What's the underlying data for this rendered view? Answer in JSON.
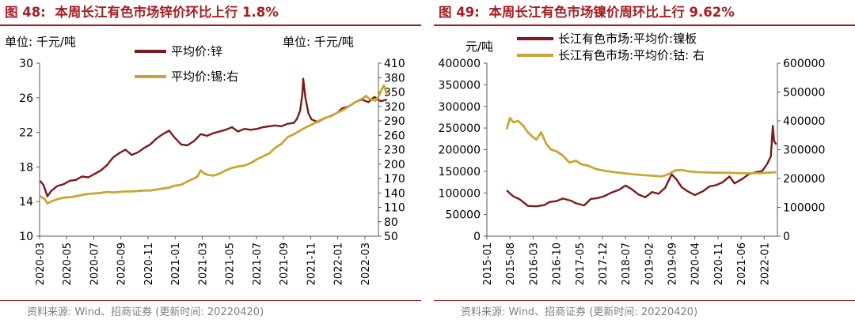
{
  "chart_data": [
    {
      "type": "line",
      "figure_label": "图 48:",
      "title": "本周长江有色市场锌价环比上行 1.8%",
      "left_unit": "单位:  千元/吨",
      "right_unit": "单位:  千元/吨",
      "y_left": {
        "range": [
          10,
          30
        ],
        "ticks": [
          10,
          14,
          18,
          22,
          26,
          30
        ]
      },
      "y_right": {
        "range": [
          50,
          410
        ],
        "ticks": [
          50,
          80,
          110,
          140,
          170,
          200,
          230,
          260,
          290,
          320,
          350,
          380,
          410
        ]
      },
      "x_range": [
        "2020-03",
        "2022-04"
      ],
      "x_ticks": [
        "2020-03",
        "2020-05",
        "2020-07",
        "2020-09",
        "2020-11",
        "2021-01",
        "2021-03",
        "2021-05",
        "2021-07",
        "2021-09",
        "2021-11",
        "2022-01",
        "2022-03"
      ],
      "legend_position": "top-center",
      "series": [
        {
          "name": "平均价:锌",
          "axis": "left",
          "color": "#7b1a1c",
          "points": [
            [
              "2020-03-02",
              16.4
            ],
            [
              "2020-03-10",
              15.9
            ],
            [
              "2020-03-19",
              14.6
            ],
            [
              "2020-03-27",
              15.2
            ],
            [
              "2020-04-10",
              15.8
            ],
            [
              "2020-04-24",
              16.0
            ],
            [
              "2020-05-08",
              16.4
            ],
            [
              "2020-05-22",
              16.5
            ],
            [
              "2020-06-05",
              16.9
            ],
            [
              "2020-06-19",
              16.8
            ],
            [
              "2020-07-03",
              17.2
            ],
            [
              "2020-07-17",
              17.6
            ],
            [
              "2020-07-31",
              18.2
            ],
            [
              "2020-08-14",
              19.1
            ],
            [
              "2020-08-28",
              19.6
            ],
            [
              "2020-09-11",
              20.0
            ],
            [
              "2020-09-25",
              19.4
            ],
            [
              "2020-10-09",
              19.7
            ],
            [
              "2020-10-23",
              20.2
            ],
            [
              "2020-11-06",
              20.6
            ],
            [
              "2020-11-20",
              21.3
            ],
            [
              "2020-12-04",
              21.8
            ],
            [
              "2020-12-18",
              22.2
            ],
            [
              "2020-12-31",
              21.4
            ],
            [
              "2021-01-15",
              20.6
            ],
            [
              "2021-01-29",
              20.5
            ],
            [
              "2021-02-12",
              21.0
            ],
            [
              "2021-02-26",
              21.8
            ],
            [
              "2021-03-12",
              21.6
            ],
            [
              "2021-03-26",
              21.9
            ],
            [
              "2021-04-09",
              22.1
            ],
            [
              "2021-04-23",
              22.3
            ],
            [
              "2021-05-07",
              22.6
            ],
            [
              "2021-05-21",
              22.1
            ],
            [
              "2021-06-04",
              22.4
            ],
            [
              "2021-06-18",
              22.3
            ],
            [
              "2021-07-02",
              22.4
            ],
            [
              "2021-07-16",
              22.6
            ],
            [
              "2021-07-30",
              22.7
            ],
            [
              "2021-08-13",
              22.8
            ],
            [
              "2021-08-27",
              22.7
            ],
            [
              "2021-09-10",
              23.0
            ],
            [
              "2021-09-24",
              23.1
            ],
            [
              "2021-10-01",
              23.6
            ],
            [
              "2021-10-08",
              24.5
            ],
            [
              "2021-10-13",
              26.4
            ],
            [
              "2021-10-15",
              28.2
            ],
            [
              "2021-10-20",
              26.0
            ],
            [
              "2021-10-27",
              24.2
            ],
            [
              "2021-11-03",
              23.5
            ],
            [
              "2021-11-17",
              23.2
            ],
            [
              "2021-12-01",
              23.6
            ],
            [
              "2021-12-15",
              23.9
            ],
            [
              "2021-12-29",
              24.2
            ],
            [
              "2022-01-12",
              24.8
            ],
            [
              "2022-01-26",
              25.0
            ],
            [
              "2022-02-09",
              25.5
            ],
            [
              "2022-02-23",
              25.8
            ],
            [
              "2022-03-09",
              25.5
            ],
            [
              "2022-03-23",
              26.1
            ],
            [
              "2022-04-06",
              25.6
            ],
            [
              "2022-04-20",
              25.8
            ]
          ]
        },
        {
          "name": "平均价:锡:右",
          "axis": "right",
          "color": "#c9a633",
          "points": [
            [
              "2020-03-02",
              133
            ],
            [
              "2020-03-12",
              128
            ],
            [
              "2020-03-19",
              118
            ],
            [
              "2020-03-27",
              122
            ],
            [
              "2020-04-10",
              127
            ],
            [
              "2020-04-24",
              130
            ],
            [
              "2020-05-08",
              131
            ],
            [
              "2020-05-22",
              133
            ],
            [
              "2020-06-05",
              136
            ],
            [
              "2020-06-19",
              138
            ],
            [
              "2020-07-03",
              139
            ],
            [
              "2020-07-17",
              140
            ],
            [
              "2020-07-31",
              142
            ],
            [
              "2020-08-14",
              141
            ],
            [
              "2020-08-28",
              142
            ],
            [
              "2020-09-11",
              143
            ],
            [
              "2020-09-25",
              143
            ],
            [
              "2020-10-09",
              144
            ],
            [
              "2020-10-23",
              145
            ],
            [
              "2020-11-06",
              145
            ],
            [
              "2020-11-20",
              147
            ],
            [
              "2020-12-04",
              149
            ],
            [
              "2020-12-18",
              151
            ],
            [
              "2020-12-31",
              155
            ],
            [
              "2021-01-15",
              157
            ],
            [
              "2021-01-29",
              164
            ],
            [
              "2021-02-12",
              170
            ],
            [
              "2021-02-19",
              174
            ],
            [
              "2021-02-26",
              187
            ],
            [
              "2021-03-05",
              181
            ],
            [
              "2021-03-12",
              178
            ],
            [
              "2021-03-26",
              176
            ],
            [
              "2021-04-09",
              180
            ],
            [
              "2021-04-23",
              187
            ],
            [
              "2021-05-07",
              192
            ],
            [
              "2021-05-21",
              195
            ],
            [
              "2021-06-04",
              197
            ],
            [
              "2021-06-18",
              202
            ],
            [
              "2021-07-02",
              210
            ],
            [
              "2021-07-16",
              216
            ],
            [
              "2021-07-30",
              222
            ],
            [
              "2021-08-13",
              234
            ],
            [
              "2021-08-27",
              242
            ],
            [
              "2021-09-10",
              256
            ],
            [
              "2021-09-24",
              262
            ],
            [
              "2021-10-08",
              270
            ],
            [
              "2021-10-22",
              277
            ],
            [
              "2021-11-05",
              283
            ],
            [
              "2021-11-19",
              290
            ],
            [
              "2021-12-03",
              296
            ],
            [
              "2021-12-17",
              300
            ],
            [
              "2021-12-31",
              307
            ],
            [
              "2022-01-14",
              313
            ],
            [
              "2022-01-28",
              321
            ],
            [
              "2022-02-11",
              330
            ],
            [
              "2022-02-25",
              337
            ],
            [
              "2022-03-04",
              342
            ],
            [
              "2022-03-11",
              336
            ],
            [
              "2022-03-25",
              332
            ],
            [
              "2022-04-01",
              340
            ],
            [
              "2022-04-08",
              355
            ],
            [
              "2022-04-13",
              364
            ],
            [
              "2022-04-20",
              345
            ]
          ]
        }
      ]
    },
    {
      "type": "line",
      "figure_label": "图 49:",
      "title": "本周长江有色市场镍价周环比上行 9.62%",
      "left_unit": "元/吨",
      "right_unit": "",
      "y_left": {
        "range": [
          0,
          400000
        ],
        "ticks": [
          0,
          50000,
          100000,
          150000,
          200000,
          250000,
          300000,
          350000,
          400000
        ]
      },
      "y_right": {
        "range": [
          0,
          600000
        ],
        "ticks": [
          0,
          100000,
          200000,
          300000,
          400000,
          500000,
          600000
        ]
      },
      "x_range": [
        "2015-01",
        "2022-05"
      ],
      "x_ticks": [
        "2015-01",
        "2015-08",
        "2016-03",
        "2016-10",
        "2017-05",
        "2017-12",
        "2018-07",
        "2019-02",
        "2019-09",
        "2020-04",
        "2020-11",
        "2021-06",
        "2022-01"
      ],
      "legend_position": "top-left",
      "series": [
        {
          "name": "长江有色市场:平均价:镍板",
          "axis": "left",
          "color": "#7b1a1c",
          "points": [
            [
              "2015-07-01",
              106000
            ],
            [
              "2015-09-01",
              92000
            ],
            [
              "2015-11-01",
              85000
            ],
            [
              "2016-01-15",
              70000
            ],
            [
              "2016-04-01",
              69000
            ],
            [
              "2016-06-15",
              72000
            ],
            [
              "2016-08-01",
              79000
            ],
            [
              "2016-10-01",
              81000
            ],
            [
              "2016-12-01",
              87000
            ],
            [
              "2017-02-15",
              82000
            ],
            [
              "2017-04-01",
              76000
            ],
            [
              "2017-06-15",
              71000
            ],
            [
              "2017-08-15",
              86000
            ],
            [
              "2017-10-15",
              88000
            ],
            [
              "2017-12-15",
              92000
            ],
            [
              "2018-02-15",
              100000
            ],
            [
              "2018-05-01",
              107000
            ],
            [
              "2018-07-01",
              117000
            ],
            [
              "2018-09-01",
              108000
            ],
            [
              "2018-11-01",
              96000
            ],
            [
              "2019-01-01",
              90000
            ],
            [
              "2019-03-01",
              102000
            ],
            [
              "2019-05-01",
              98000
            ],
            [
              "2019-07-01",
              112000
            ],
            [
              "2019-09-01",
              143000
            ],
            [
              "2019-10-15",
              131000
            ],
            [
              "2019-12-01",
              113000
            ],
            [
              "2020-02-01",
              103000
            ],
            [
              "2020-04-01",
              95000
            ],
            [
              "2020-06-15",
              104000
            ],
            [
              "2020-08-15",
              115000
            ],
            [
              "2020-10-15",
              118000
            ],
            [
              "2020-12-15",
              125000
            ],
            [
              "2021-02-15",
              138000
            ],
            [
              "2021-04-01",
              122000
            ],
            [
              "2021-06-15",
              133000
            ],
            [
              "2021-08-15",
              144000
            ],
            [
              "2021-10-15",
              148000
            ],
            [
              "2021-12-15",
              151000
            ],
            [
              "2022-01-31",
              168000
            ],
            [
              "2022-03-01",
              185000
            ],
            [
              "2022-03-20",
              255000
            ],
            [
              "2022-04-01",
              220000
            ],
            [
              "2022-04-20",
              212000
            ]
          ]
        },
        {
          "name": "长江有色市场:平均价:钴:  右",
          "axis": "right",
          "color": "#c9a633",
          "points": [
            [
              "2015-07-01",
              370000
            ],
            [
              "2015-08-01",
              410000
            ],
            [
              "2015-09-01",
              395000
            ],
            [
              "2015-10-15",
              400000
            ],
            [
              "2015-12-01",
              383000
            ],
            [
              "2016-01-15",
              360000
            ],
            [
              "2016-03-01",
              343000
            ],
            [
              "2016-04-01",
              335000
            ],
            [
              "2016-05-15",
              360000
            ],
            [
              "2016-07-01",
              320000
            ],
            [
              "2016-08-15",
              300000
            ],
            [
              "2016-10-01",
              295000
            ],
            [
              "2016-12-01",
              280000
            ],
            [
              "2017-02-01",
              255000
            ],
            [
              "2017-04-01",
              262000
            ],
            [
              "2017-05-15",
              250000
            ],
            [
              "2017-08-01",
              243000
            ],
            [
              "2017-10-01",
              233000
            ],
            [
              "2017-12-01",
              228000
            ],
            [
              "2018-03-01",
              223000
            ],
            [
              "2018-06-01",
              219000
            ],
            [
              "2018-09-01",
              215000
            ],
            [
              "2018-12-01",
              212000
            ],
            [
              "2019-03-01",
              210000
            ],
            [
              "2019-06-01",
              207000
            ],
            [
              "2019-08-01",
              215000
            ],
            [
              "2019-10-01",
              228000
            ],
            [
              "2019-12-01",
              230000
            ],
            [
              "2020-02-01",
              225000
            ],
            [
              "2020-05-01",
              222000
            ],
            [
              "2020-08-01",
              221000
            ],
            [
              "2020-11-01",
              220000
            ],
            [
              "2021-02-01",
              220000
            ],
            [
              "2021-05-01",
              219000
            ],
            [
              "2021-08-01",
              218000
            ],
            [
              "2021-11-01",
              218000
            ],
            [
              "2022-02-01",
              220000
            ],
            [
              "2022-04-20",
              222000
            ]
          ]
        }
      ]
    }
  ],
  "footer": {
    "left_source": "资料来源:  Wind、招商证券 (更新时间: 20220420)",
    "right_source": "资料来源:  Wind、招商证券 (更新时间: 20220420)"
  },
  "colors": {
    "accent": "#a51e22",
    "axis": "#595959",
    "series_dark": "#7b1a1c",
    "series_gold": "#c9a633"
  }
}
